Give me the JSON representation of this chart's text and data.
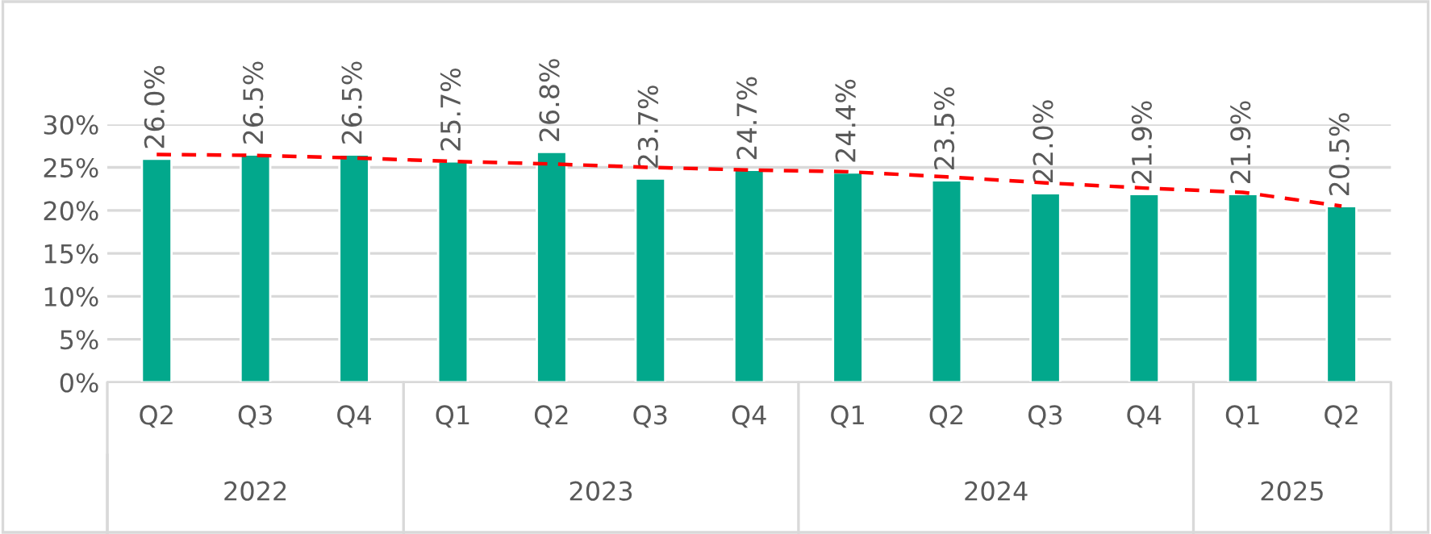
{
  "chart_data": {
    "type": "bar",
    "categories": [
      "Q2",
      "Q3",
      "Q4",
      "Q1",
      "Q2",
      "Q3",
      "Q4",
      "Q1",
      "Q2",
      "Q3",
      "Q4",
      "Q1",
      "Q2"
    ],
    "series": [
      {
        "color": "#02a88c",
        "values": [
          26.0,
          26.5,
          26.5,
          25.7,
          26.8,
          23.7,
          24.7,
          24.4,
          23.5,
          22.0,
          21.9,
          21.9,
          20.5
        ],
        "value_labels": [
          "26.0%",
          "26.5%",
          "26.5%",
          "25.7%",
          "26.8%",
          "23.7%",
          "24.7%",
          "24.4%",
          "23.5%",
          "22.0%",
          "21.9%",
          "21.9%",
          "20.5%"
        ]
      },
      {
        "type": "line",
        "color": "#ff0000",
        "line_style": "dashed",
        "values": [
          26.5,
          26.4,
          26.1,
          25.7,
          25.4,
          25.0,
          24.7,
          24.5,
          23.9,
          23.2,
          22.6,
          22.1,
          20.5
        ]
      }
    ],
    "ylim": [
      0,
      30
    ],
    "yticks": [
      {
        "value": 0,
        "label": "0%"
      },
      {
        "value": 5,
        "label": "5%"
      },
      {
        "value": 10,
        "label": "10%"
      },
      {
        "value": 15,
        "label": "15%"
      },
      {
        "value": 20,
        "label": "20%"
      },
      {
        "value": 25,
        "label": "25%"
      },
      {
        "value": 30,
        "label": "30%"
      }
    ],
    "grid": "y",
    "legend": false,
    "annotations": [
      "2022",
      "2023",
      "2024",
      "2025"
    ]
  }
}
